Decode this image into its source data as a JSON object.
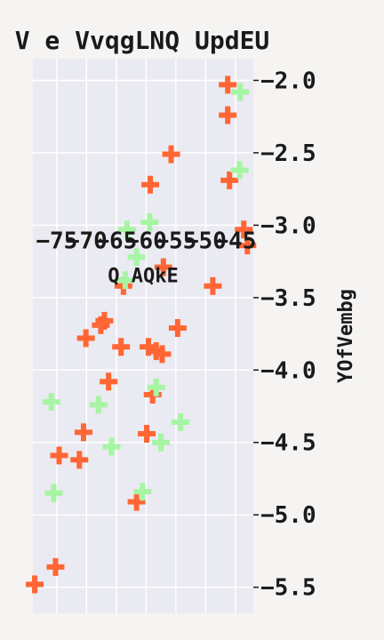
{
  "chart_data": {
    "type": "scatter",
    "title": "V e VvqgLNQ  UpdEU",
    "xlabel": "Q AQkE",
    "ylabel": "YOfVembg",
    "xlim": [
      -79,
      -42
    ],
    "ylim": [
      -5.68,
      -1.85
    ],
    "x_ticks": [
      -75,
      -70,
      -65,
      -60,
      -55,
      -50,
      -45
    ],
    "x_tick_labels": [
      "−75",
      "−70",
      "−65",
      "−60",
      "−55",
      "−50",
      "−45"
    ],
    "y_ticks": [
      -2.0,
      -2.5,
      -3.0,
      -3.5,
      -4.0,
      -4.5,
      -5.0,
      -5.5
    ],
    "y_tick_labels": [
      "−2.0",
      "−2.5",
      "−3.0",
      "−3.5",
      "−4.0",
      "−4.5",
      "−5.0",
      "−5.5"
    ],
    "grid": true,
    "colors": {
      "background": "#eaeaf2",
      "grid": "#ffffff",
      "page": "#f5f4f2"
    },
    "series": [
      {
        "color": "#ff6634",
        "marker": "plus",
        "points": [
          [
            -46.3,
            -2.03
          ],
          [
            -46.3,
            -2.24
          ],
          [
            -55.8,
            -2.51
          ],
          [
            -59.3,
            -2.72
          ],
          [
            -46.0,
            -2.69
          ],
          [
            -43.6,
            -3.03
          ],
          [
            -43.0,
            -3.14
          ],
          [
            -57.1,
            -3.29
          ],
          [
            -48.8,
            -3.42
          ],
          [
            -63.8,
            -3.42
          ],
          [
            -67.0,
            -3.66
          ],
          [
            -67.6,
            -3.69
          ],
          [
            -70.1,
            -3.78
          ],
          [
            -64.2,
            -3.84
          ],
          [
            -59.6,
            -3.84
          ],
          [
            -58.3,
            -3.87
          ],
          [
            -57.3,
            -3.89
          ],
          [
            -54.7,
            -3.71
          ],
          [
            -66.3,
            -4.08
          ],
          [
            -58.9,
            -4.17
          ],
          [
            -70.5,
            -4.43
          ],
          [
            -59.9,
            -4.44
          ],
          [
            -74.6,
            -4.59
          ],
          [
            -71.2,
            -4.62
          ],
          [
            -61.6,
            -4.91
          ],
          [
            -75.2,
            -5.36
          ],
          [
            -78.7,
            -5.48
          ]
        ]
      },
      {
        "color": "#a6f5a3",
        "marker": "plus",
        "points": [
          [
            -44.2,
            -2.08
          ],
          [
            -44.3,
            -2.62
          ],
          [
            -63.2,
            -3.03
          ],
          [
            -59.4,
            -2.98
          ],
          [
            -61.6,
            -3.22
          ],
          [
            -63.5,
            -3.38
          ],
          [
            -58.3,
            -4.12
          ],
          [
            -68.0,
            -4.24
          ],
          [
            -75.9,
            -4.22
          ],
          [
            -65.8,
            -4.53
          ],
          [
            -57.5,
            -4.5
          ],
          [
            -54.2,
            -4.36
          ],
          [
            -60.6,
            -4.84
          ],
          [
            -75.5,
            -4.85
          ]
        ]
      }
    ]
  }
}
